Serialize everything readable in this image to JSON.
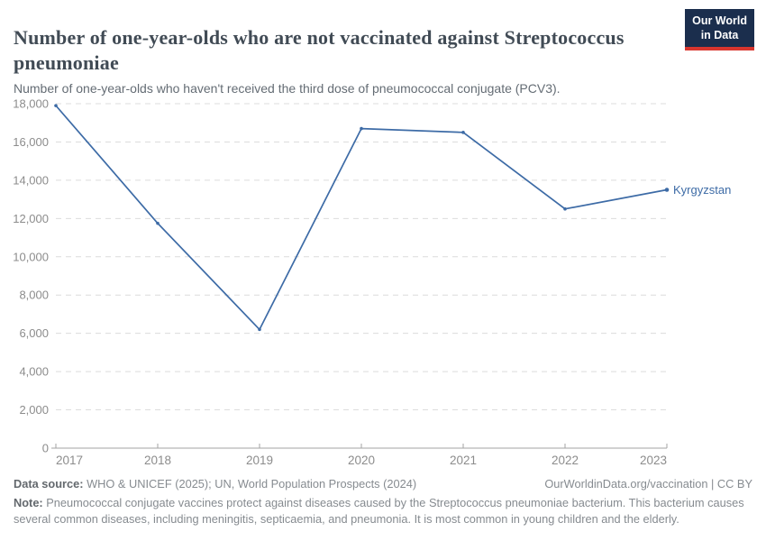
{
  "header": {
    "title": "Number of one-year-olds who are not vaccinated against Streptococcus pneumoniae",
    "subtitle": "Number of one-year-olds who haven't received the third dose of pneumococcal conjugate (PCV3).",
    "logo_line1": "Our World",
    "logo_line2": "in Data"
  },
  "chart_data": {
    "type": "line",
    "title": "Number of one-year-olds who are not vaccinated against Streptococcus pneumoniae",
    "x": [
      2017,
      2018,
      2019,
      2020,
      2021,
      2022,
      2023
    ],
    "series": [
      {
        "name": "Kyrgyzstan",
        "color": "#3d6ba6",
        "values": [
          17900,
          11750,
          6200,
          16700,
          16500,
          12500,
          13500
        ]
      }
    ],
    "xlabel": "",
    "ylabel": "",
    "ylim": [
      0,
      18000
    ],
    "ytick_interval": 2000,
    "grid": "horizontal-dashed",
    "legend_position": "end-of-line"
  },
  "footer": {
    "source_label": "Data source:",
    "source_text": " WHO & UNICEF (2025); UN, World Population Prospects (2024)",
    "link": "OurWorldinData.org/vaccination | CC BY",
    "note_label": "Note:",
    "note_text": " Pneumococcal conjugate vaccines protect against diseases caused by the Streptococcus pneumoniae bacterium. This bacterium causes several common diseases, including meningitis, septicaemia, and pneumonia. It is most common in young children and the elderly."
  },
  "colors": {
    "line": "#3d6ba6",
    "logo_navy": "#1b2e4d",
    "logo_red": "#d8352e",
    "gridline": "#dcdcdc",
    "axis": "#a3a3a3",
    "tick_label": "#8c8c8c"
  }
}
